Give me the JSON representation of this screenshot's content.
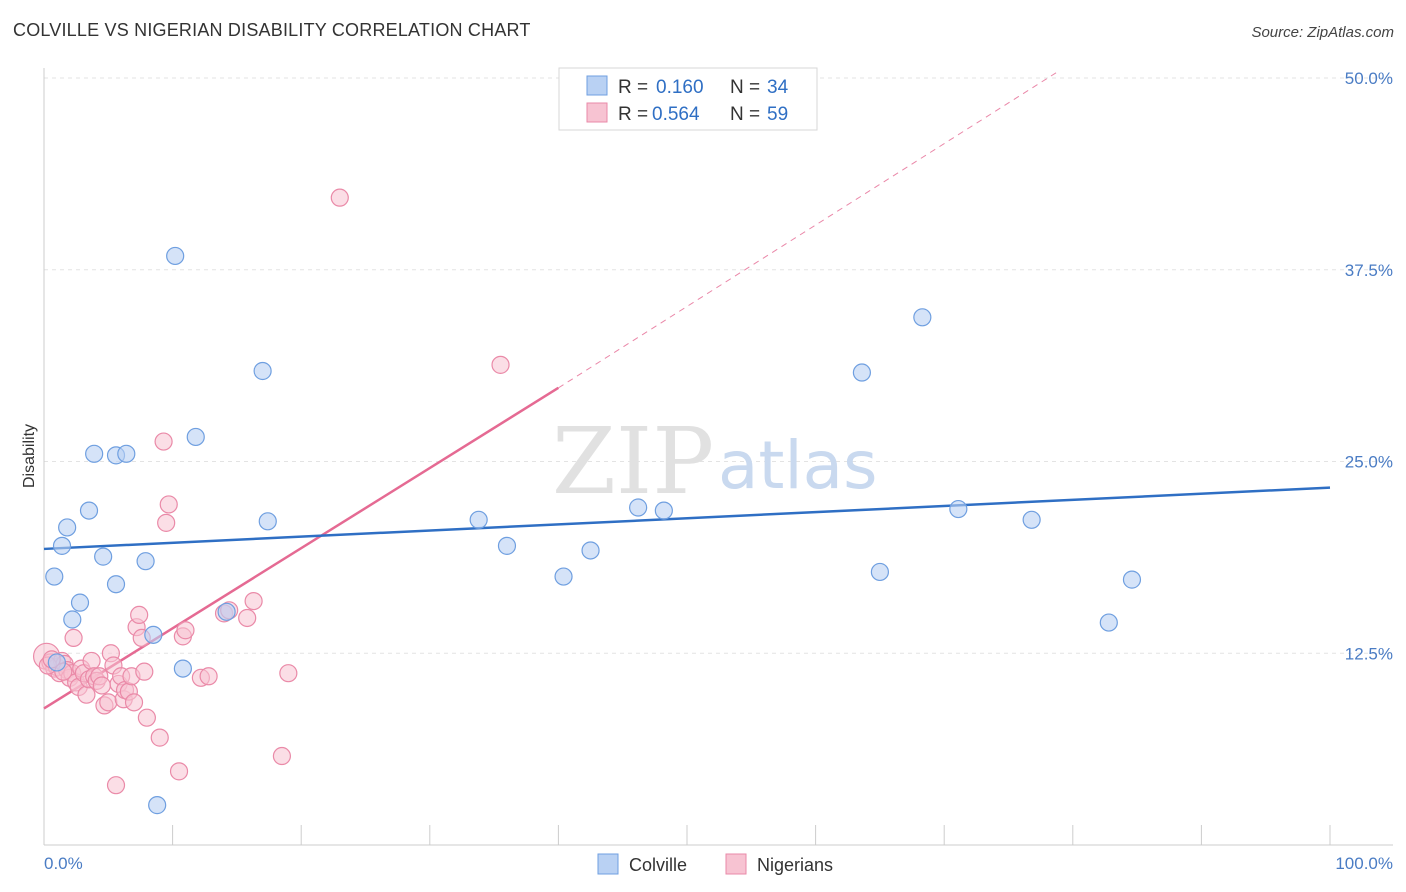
{
  "title": "COLVILLE VS NIGERIAN DISABILITY CORRELATION CHART",
  "source": "Source: ZipAtlas.com",
  "watermark": {
    "zip": "ZIP",
    "atlas": "atlas"
  },
  "colors": {
    "colville_fill": "#b9d1f3",
    "colville_stroke": "#6f9fe0",
    "colville_line": "#2f6fc4",
    "nigerian_fill": "#f7c3d2",
    "nigerian_stroke": "#ea8aa8",
    "nigerian_line": "#e56a93",
    "tick_label": "#4a7cc4",
    "grid": "#e3e3e3"
  },
  "legend": {
    "rows": [
      {
        "r_label": "R = ",
        "r_value": "0.160",
        "n_label": "N = ",
        "n_value": "34"
      },
      {
        "r_label": "R = ",
        "r_value": "0.564",
        "n_label": "N = ",
        "n_value": "59"
      }
    ]
  },
  "chart_data": {
    "type": "scatter",
    "title": "COLVILLE VS NIGERIAN DISABILITY CORRELATION CHART",
    "xlabel": "",
    "ylabel": "Disability",
    "xlim": [
      0,
      100
    ],
    "ylim": [
      0,
      50
    ],
    "x_tick_labels": [
      "0.0%",
      "100.0%"
    ],
    "y_ticks": [
      12.5,
      25.0,
      37.5,
      50.0
    ],
    "y_tick_labels": [
      "12.5%",
      "25.0%",
      "37.5%",
      "50.0%"
    ],
    "grid": "horizontal dashed",
    "legend_position": "top-center",
    "series": [
      {
        "name": "Colville",
        "r": 0.16,
        "n": 34,
        "trend": {
          "x0": 0,
          "y0": 19.3,
          "x1": 100,
          "y1": 23.3
        },
        "points": [
          [
            0.8,
            17.5
          ],
          [
            1.4,
            19.5
          ],
          [
            1.8,
            20.7
          ],
          [
            2.2,
            14.7
          ],
          [
            2.8,
            15.8
          ],
          [
            3.5,
            21.8
          ],
          [
            3.9,
            25.5
          ],
          [
            4.6,
            18.8
          ],
          [
            5.6,
            17.0
          ],
          [
            5.6,
            25.4
          ],
          [
            6.4,
            25.5
          ],
          [
            7.9,
            18.5
          ],
          [
            8.8,
            2.6
          ],
          [
            8.5,
            13.7
          ],
          [
            10.2,
            38.4
          ],
          [
            10.8,
            11.5
          ],
          [
            11.8,
            26.6
          ],
          [
            14.2,
            15.2
          ],
          [
            17.0,
            30.9
          ],
          [
            17.4,
            21.1
          ],
          [
            33.8,
            21.2
          ],
          [
            36.0,
            19.5
          ],
          [
            40.4,
            17.5
          ],
          [
            42.5,
            19.2
          ],
          [
            46.2,
            22.0
          ],
          [
            48.2,
            21.8
          ],
          [
            63.6,
            30.8
          ],
          [
            65.0,
            17.8
          ],
          [
            68.3,
            34.4
          ],
          [
            71.1,
            21.9
          ],
          [
            76.8,
            21.2
          ],
          [
            82.8,
            14.5
          ],
          [
            84.6,
            17.3
          ],
          [
            1.0,
            11.9
          ]
        ]
      },
      {
        "name": "Nigerians",
        "r": 0.564,
        "n": 59,
        "trend": {
          "x0": 0,
          "y0": 8.9,
          "x1": 40,
          "y1": 29.8
        },
        "trend_extension": {
          "x0": 40,
          "y0": 29.8,
          "x1": 79,
          "y1": 50.5
        },
        "points": [
          [
            0.2,
            12.3
          ],
          [
            0.5,
            11.9
          ],
          [
            0.8,
            11.5
          ],
          [
            1.0,
            11.6
          ],
          [
            1.2,
            11.2
          ],
          [
            1.4,
            12.0
          ],
          [
            1.6,
            11.8
          ],
          [
            1.8,
            11.4
          ],
          [
            2.0,
            10.9
          ],
          [
            2.2,
            11.2
          ],
          [
            2.3,
            13.5
          ],
          [
            2.5,
            10.6
          ],
          [
            2.7,
            10.3
          ],
          [
            2.9,
            11.5
          ],
          [
            3.1,
            11.2
          ],
          [
            3.3,
            9.8
          ],
          [
            3.5,
            10.8
          ],
          [
            3.7,
            12.0
          ],
          [
            3.9,
            11.0
          ],
          [
            4.1,
            10.7
          ],
          [
            4.3,
            11.0
          ],
          [
            4.5,
            10.4
          ],
          [
            4.7,
            9.1
          ],
          [
            5.0,
            9.3
          ],
          [
            5.2,
            12.5
          ],
          [
            5.4,
            11.7
          ],
          [
            5.6,
            3.9
          ],
          [
            5.8,
            10.5
          ],
          [
            6.0,
            11.0
          ],
          [
            6.2,
            9.5
          ],
          [
            6.3,
            10.1
          ],
          [
            6.6,
            10.0
          ],
          [
            6.8,
            11.0
          ],
          [
            7.0,
            9.3
          ],
          [
            7.2,
            14.2
          ],
          [
            7.4,
            15.0
          ],
          [
            7.6,
            13.5
          ],
          [
            7.8,
            11.3
          ],
          [
            8.0,
            8.3
          ],
          [
            9.0,
            7.0
          ],
          [
            9.3,
            26.3
          ],
          [
            9.5,
            21.0
          ],
          [
            9.7,
            22.2
          ],
          [
            10.5,
            4.8
          ],
          [
            10.8,
            13.6
          ],
          [
            11.0,
            14.0
          ],
          [
            12.2,
            10.9
          ],
          [
            12.8,
            11.0
          ],
          [
            14.0,
            15.1
          ],
          [
            14.4,
            15.3
          ],
          [
            15.8,
            14.8
          ],
          [
            16.3,
            15.9
          ],
          [
            18.5,
            5.8
          ],
          [
            19.0,
            11.2
          ],
          [
            23.0,
            42.2
          ],
          [
            35.5,
            31.3
          ],
          [
            0.3,
            11.7
          ],
          [
            0.6,
            12.1
          ],
          [
            1.5,
            11.3
          ]
        ]
      }
    ]
  },
  "bottom_legend": [
    "Colville",
    "Nigerians"
  ]
}
